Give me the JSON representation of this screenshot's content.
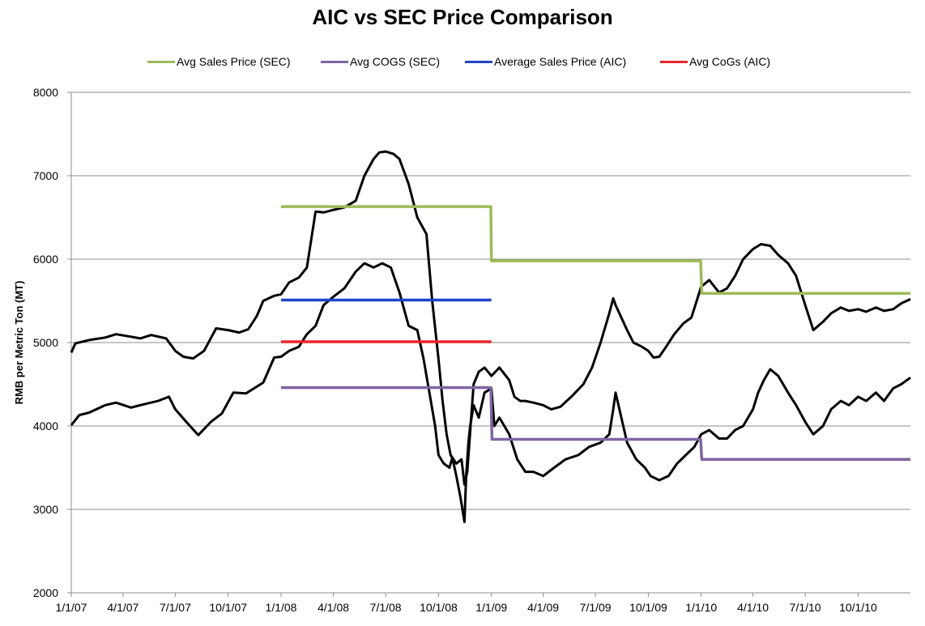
{
  "chart_data": {
    "type": "line",
    "title": "AIC vs SEC Price Comparison",
    "xlabel": "",
    "ylabel": "RMB per Metric Ton (MT)",
    "ylim": [
      2000,
      8000
    ],
    "yticks": [
      "2000",
      "3000",
      "4000",
      "5000",
      "6000",
      "7000",
      "8000"
    ],
    "xlim": [
      "2007-01-01",
      "2010-12-31"
    ],
    "xticks": [
      "1/1/07",
      "4/1/07",
      "7/1/07",
      "10/1/07",
      "1/1/08",
      "4/1/08",
      "7/1/08",
      "10/1/08",
      "1/1/09",
      "4/1/09",
      "7/1/09",
      "10/1/09",
      "1/1/10",
      "4/1/10",
      "7/1/10",
      "10/1/10"
    ],
    "grid": "horizontal",
    "legend_position": "top",
    "legend": [
      {
        "label": "Avg Sales Price (SEC)",
        "color": "#9bbb59"
      },
      {
        "label": "Avg COGS (SEC)",
        "color": "#8064a2"
      },
      {
        "label": "Average Sales Price (AIC)",
        "color": "#1f44c8"
      },
      {
        "label": "Avg CoGs (AIC)",
        "color": "#e8262a"
      }
    ],
    "series": [
      {
        "name": "Avg Sales Price (SEC)",
        "color": "#9bbb59",
        "x": [
          "2008-01-01",
          "2008-12-31",
          "2009-01-01",
          "2009-12-31",
          "2010-01-02",
          "2010-12-31"
        ],
        "y": [
          6630,
          6630,
          5980,
          5980,
          5590,
          5590
        ]
      },
      {
        "name": "Avg COGS (SEC)",
        "color": "#8064a2",
        "x": [
          "2008-01-01",
          "2008-12-31",
          "2009-01-02",
          "2009-12-31",
          "2010-01-02",
          "2010-12-31"
        ],
        "y": [
          4460,
          4460,
          3840,
          3840,
          3600,
          3600
        ]
      },
      {
        "name": "Average Sales Price (AIC)",
        "color": "#1f44c8",
        "x": [
          "2008-01-01",
          "2009-01-01"
        ],
        "y": [
          5510,
          5510
        ]
      },
      {
        "name": "Avg CoGs (AIC)",
        "color": "#e8262a",
        "x": [
          "2008-01-01",
          "2009-01-01"
        ],
        "y": [
          5010,
          5010
        ]
      },
      {
        "name": "",
        "color": "#000000",
        "x": [
          "2007-01-01",
          "2007-01-08",
          "2007-02-01",
          "2007-03-01",
          "2007-03-20",
          "2007-04-15",
          "2007-05-01",
          "2007-05-20",
          "2007-06-15",
          "2007-07-01",
          "2007-07-15",
          "2007-08-01",
          "2007-08-20",
          "2007-09-10",
          "2007-10-01",
          "2007-10-20",
          "2007-11-05",
          "2007-11-20",
          "2007-12-01",
          "2007-12-20",
          "2008-01-01",
          "2008-01-15",
          "2008-02-01",
          "2008-02-15",
          "2008-03-01",
          "2008-03-15",
          "2008-04-01",
          "2008-04-20",
          "2008-05-10",
          "2008-05-25",
          "2008-06-10",
          "2008-06-20",
          "2008-07-01",
          "2008-07-15",
          "2008-07-25",
          "2008-08-10",
          "2008-08-25",
          "2008-09-10",
          "2008-09-20",
          "2008-10-01",
          "2008-10-08",
          "2008-10-15",
          "2008-10-22",
          "2008-11-01",
          "2008-11-10",
          "2008-11-15",
          "2008-11-20",
          "2008-12-01",
          "2008-12-10",
          "2008-12-20",
          "2009-01-01",
          "2009-01-15",
          "2009-02-01",
          "2009-02-10",
          "2009-02-20",
          "2009-03-01",
          "2009-03-15",
          "2009-04-01",
          "2009-04-15",
          "2009-05-01",
          "2009-05-20",
          "2009-06-10",
          "2009-06-25",
          "2009-07-10",
          "2009-07-25",
          "2009-08-01",
          "2009-08-05",
          "2009-08-15",
          "2009-08-25",
          "2009-09-05",
          "2009-09-20",
          "2009-10-01",
          "2009-10-10",
          "2009-10-20",
          "2009-11-01",
          "2009-11-15",
          "2009-12-01",
          "2009-12-15",
          "2010-01-01",
          "2010-01-15",
          "2010-02-01",
          "2010-02-15",
          "2010-03-01",
          "2010-03-15",
          "2010-04-01",
          "2010-04-15",
          "2010-05-01",
          "2010-05-15",
          "2010-06-01",
          "2010-06-15",
          "2010-07-01",
          "2010-07-15",
          "2010-08-01",
          "2010-08-15",
          "2010-09-01",
          "2010-09-15",
          "2010-10-01",
          "2010-10-15",
          "2010-11-01",
          "2010-11-15",
          "2010-12-01",
          "2010-12-15",
          "2010-12-31"
        ],
        "y": [
          4880,
          4990,
          5030,
          5060,
          5100,
          5070,
          5050,
          5090,
          5050,
          4900,
          4830,
          4810,
          4900,
          5170,
          5150,
          5120,
          5160,
          5320,
          5500,
          5560,
          5580,
          5720,
          5780,
          5900,
          6570,
          6560,
          6590,
          6620,
          6700,
          7000,
          7200,
          7280,
          7290,
          7260,
          7200,
          6900,
          6500,
          6300,
          5500,
          4800,
          4300,
          3900,
          3650,
          3550,
          3600,
          3300,
          3450,
          4500,
          4650,
          4700,
          4600,
          4700,
          4550,
          4350,
          4300,
          4300,
          4280,
          4250,
          4200,
          4230,
          4350,
          4500,
          4700,
          5000,
          5350,
          5530,
          5450,
          5300,
          5150,
          5000,
          4950,
          4900,
          4820,
          4830,
          4950,
          5100,
          5230,
          5300,
          5670,
          5750,
          5600,
          5650,
          5800,
          6000,
          6120,
          6180,
          6160,
          6050,
          5950,
          5800,
          5450,
          5150,
          5250,
          5350,
          5420,
          5380,
          5400,
          5370,
          5420,
          5380,
          5400,
          5470,
          5520
        ]
      },
      {
        "name": "",
        "color": "#000000",
        "x": [
          "2007-01-01",
          "2007-01-15",
          "2007-02-01",
          "2007-03-01",
          "2007-03-20",
          "2007-04-15",
          "2007-05-01",
          "2007-06-01",
          "2007-06-20",
          "2007-07-01",
          "2007-07-20",
          "2007-08-10",
          "2007-09-01",
          "2007-09-20",
          "2007-10-10",
          "2007-11-01",
          "2007-12-01",
          "2007-12-20",
          "2008-01-01",
          "2008-01-15",
          "2008-02-01",
          "2008-02-15",
          "2008-03-01",
          "2008-03-15",
          "2008-04-01",
          "2008-04-20",
          "2008-05-10",
          "2008-05-25",
          "2008-06-10",
          "2008-06-25",
          "2008-07-10",
          "2008-07-25",
          "2008-08-10",
          "2008-08-25",
          "2008-09-05",
          "2008-09-15",
          "2008-09-25",
          "2008-10-01",
          "2008-10-10",
          "2008-10-20",
          "2008-10-25",
          "2008-11-01",
          "2008-11-08",
          "2008-11-15",
          "2008-11-18",
          "2008-11-22",
          "2008-11-25",
          "2008-12-01",
          "2008-12-10",
          "2008-12-20",
          "2009-01-01",
          "2009-01-06",
          "2009-01-15",
          "2009-02-01",
          "2009-02-15",
          "2009-03-01",
          "2009-03-15",
          "2009-04-01",
          "2009-04-20",
          "2009-05-10",
          "2009-06-01",
          "2009-06-20",
          "2009-07-10",
          "2009-07-25",
          "2009-08-01",
          "2009-08-05",
          "2009-08-15",
          "2009-08-25",
          "2009-09-10",
          "2009-09-25",
          "2009-10-05",
          "2009-10-20",
          "2009-11-05",
          "2009-11-20",
          "2009-12-05",
          "2009-12-20",
          "2010-01-01",
          "2010-01-15",
          "2010-02-01",
          "2010-02-15",
          "2010-03-01",
          "2010-03-15",
          "2010-04-01",
          "2010-04-10",
          "2010-04-20",
          "2010-05-01",
          "2010-05-15",
          "2010-06-01",
          "2010-06-15",
          "2010-07-01",
          "2010-07-15",
          "2010-08-01",
          "2010-08-15",
          "2010-09-01",
          "2010-09-15",
          "2010-10-01",
          "2010-10-15",
          "2010-11-01",
          "2010-11-15",
          "2010-12-01",
          "2010-12-15",
          "2010-12-31"
        ],
        "y": [
          4010,
          4130,
          4160,
          4250,
          4280,
          4220,
          4250,
          4300,
          4350,
          4200,
          4050,
          3890,
          4050,
          4150,
          4400,
          4390,
          4520,
          4820,
          4830,
          4900,
          4950,
          5100,
          5200,
          5450,
          5550,
          5650,
          5850,
          5950,
          5900,
          5950,
          5900,
          5600,
          5200,
          5150,
          4800,
          4400,
          4000,
          3650,
          3550,
          3500,
          3620,
          3400,
          3150,
          2850,
          3400,
          3800,
          4000,
          4250,
          4100,
          4400,
          4450,
          4000,
          4100,
          3900,
          3600,
          3450,
          3450,
          3400,
          3500,
          3600,
          3650,
          3750,
          3800,
          3900,
          4200,
          4400,
          4100,
          3800,
          3600,
          3500,
          3400,
          3350,
          3400,
          3550,
          3650,
          3750,
          3900,
          3950,
          3850,
          3850,
          3950,
          4000,
          4200,
          4400,
          4550,
          4680,
          4600,
          4400,
          4250,
          4050,
          3900,
          4000,
          4200,
          4300,
          4250,
          4350,
          4300,
          4400,
          4300,
          4450,
          4500,
          4580
        ]
      }
    ]
  }
}
